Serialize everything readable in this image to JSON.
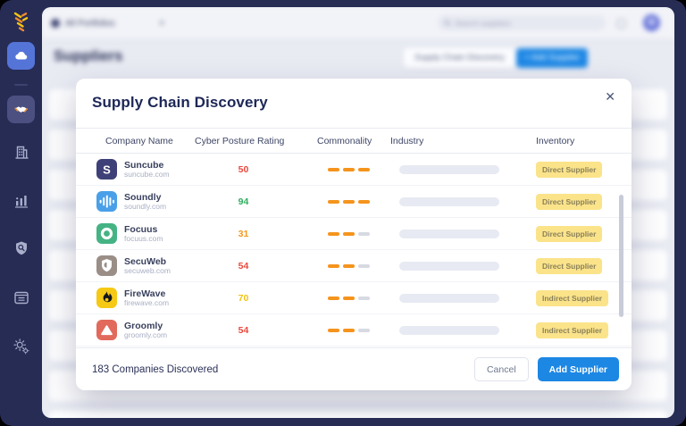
{
  "colors": {
    "accent_blue": "#1D87E4",
    "sidebar_navy": "#272C55",
    "active_item_blue": "#5574D8",
    "badge_bg": "#FBE38A",
    "badge_text": "#8A815A",
    "dash_on": "#F5941D",
    "dash_off": "#D7DAE2"
  },
  "topbar": {
    "portfolio_label": "All Portfolios",
    "search_placeholder": "Search suppliers"
  },
  "page": {
    "title": "Suppliers",
    "discovery_button_label": "Supply Chain Discovery",
    "add_supplier_button_label": "+ Add Supplier"
  },
  "modal": {
    "title": "Supply Chain Discovery",
    "close_label": "✕",
    "columns": [
      "Company Name",
      "Cyber Posture Rating",
      "Commonality",
      "Industry",
      "Inventory"
    ],
    "rows": [
      {
        "company": "Suncube",
        "domain": "suncube.com",
        "icon": "letter-s-icon",
        "icon_bg": "#3E4178",
        "rating": "50",
        "rating_color": "#E9493C",
        "commonality": {
          "filled": 3,
          "total": 3
        },
        "inventory": "Direct Supplier"
      },
      {
        "company": "Soundly",
        "domain": "soundly.com",
        "icon": "waveform-icon",
        "icon_bg": "#4AA0E8",
        "rating": "94",
        "rating_color": "#2EAE5E",
        "commonality": {
          "filled": 3,
          "total": 3
        },
        "inventory": "Direct Supplier"
      },
      {
        "company": "Focuus",
        "domain": "focuus.com",
        "icon": "ring-icon",
        "icon_bg": "#45B384",
        "rating": "31",
        "rating_color": "#F6981C",
        "commonality": {
          "filled": 2,
          "total": 3
        },
        "inventory": "Direct Supplier"
      },
      {
        "company": "SecuWeb",
        "domain": "secuweb.com",
        "icon": "shield-icon",
        "icon_bg": "#9A8E87",
        "rating": "54",
        "rating_color": "#E9493C",
        "commonality": {
          "filled": 2,
          "total": 3
        },
        "inventory": "Direct Supplier"
      },
      {
        "company": "FireWave",
        "domain": "firewave.com",
        "icon": "flame-icon",
        "icon_bg": "#F6C915",
        "rating": "70",
        "rating_color": "#F3C213",
        "commonality": {
          "filled": 2,
          "total": 3
        },
        "inventory": "Indirect Supplier"
      },
      {
        "company": "Groomly",
        "domain": "groomly.com",
        "icon": "mountain-icon",
        "icon_bg": "#E26A5C",
        "rating": "54",
        "rating_color": "#E9493C",
        "commonality": {
          "filled": 2,
          "total": 3
        },
        "inventory": "Indirect Supplier"
      }
    ],
    "footer": {
      "count_text": "183 Companies Discovered",
      "cancel_label": "Cancel",
      "add_supplier_label": "Add Supplier"
    }
  }
}
